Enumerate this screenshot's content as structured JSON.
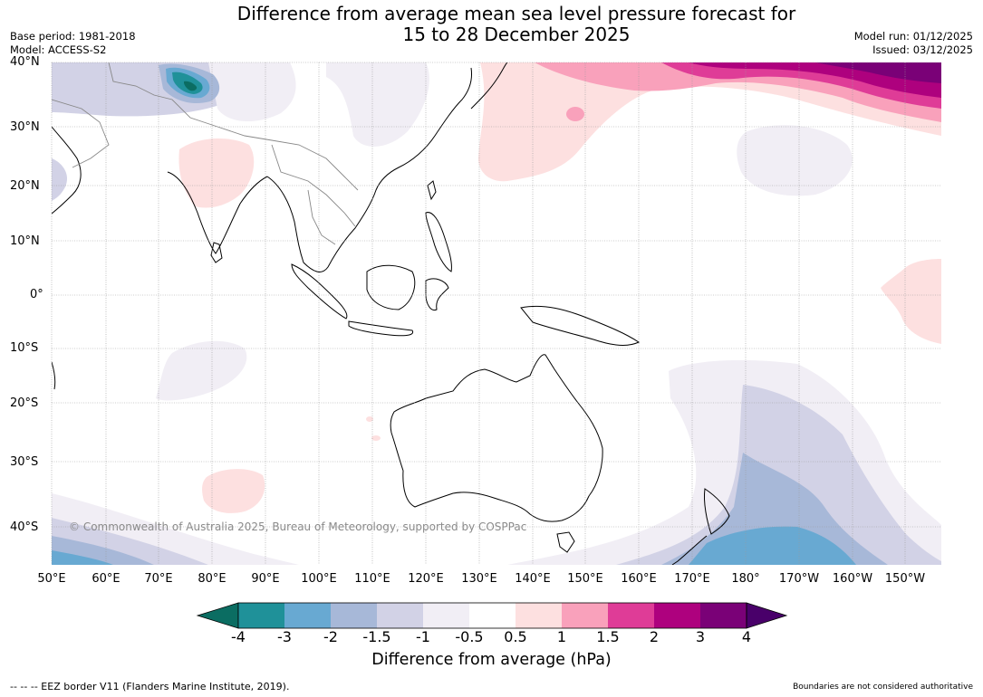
{
  "header": {
    "title_line1": "Difference from average mean sea level pressure forecast for",
    "title_line2": "15 to 28 December 2025",
    "base_period": "Base period: 1981-2018",
    "model": "Model: ACCESS-S2",
    "model_run": "Model run: 01/12/2025",
    "issued": "Issued: 03/12/2025"
  },
  "map": {
    "latitude_labels": [
      "40°N",
      "30°N",
      "20°N",
      "10°N",
      "0°",
      "10°S",
      "20°S",
      "30°S",
      "40°S"
    ],
    "longitude_labels": [
      "50°E",
      "60°E",
      "70°E",
      "80°E",
      "90°E",
      "100°E",
      "110°E",
      "120°E",
      "130°E",
      "140°E",
      "150°E",
      "160°E",
      "170°E",
      "180°",
      "170°W",
      "160°W",
      "150°W"
    ],
    "copyright": "© Commonwealth of Australia 2025, Bureau of Meteorology, supported by COSPPac"
  },
  "colorbar": {
    "title": "Difference from average (hPa)",
    "ticks": [
      "-4",
      "-3",
      "-2",
      "-1.5",
      "-1",
      "-0.5",
      "0.5",
      "1",
      "1.5",
      "2",
      "3",
      "4"
    ],
    "colors": {
      "below_-4": "#0b6d62",
      "-4_-3": "#1f9199",
      "-3_-2": "#68a9d2",
      "-2_-1.5": "#a7b8d8",
      "-1.5_-1": "#d2d2e6",
      "-1_-0.5": "#f1eef5",
      "-0.5_0.5": "#ffffff",
      "0.5_1": "#fde0e0",
      "1_1.5": "#f9a1bb",
      "1.5_2": "#df3c97",
      "2_3": "#ae017e",
      "3_4": "#7a0177",
      "above_4": "#49006a"
    }
  },
  "footer": {
    "eez_note": "--  --  -- EEZ border V11 (Flanders Marine Institute, 2019).",
    "boundaries_note": "Boundaries are not considered authoritative"
  }
}
